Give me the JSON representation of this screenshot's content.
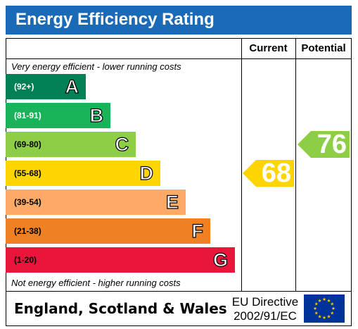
{
  "title": "Energy Efficiency Rating",
  "columns": {
    "current": "Current",
    "potential": "Potential"
  },
  "top_note": "Very energy efficient - lower running costs",
  "bottom_note": "Not energy efficient - higher running costs",
  "footer": {
    "country": "England, Scotland & Wales",
    "directive_line1": "EU Directive",
    "directive_line2": "2002/91/EC"
  },
  "chart_data": {
    "type": "bar",
    "categories": [
      "A",
      "B",
      "C",
      "D",
      "E",
      "F",
      "G"
    ],
    "bands": [
      {
        "letter": "A",
        "range": "(92+)",
        "color": "#008054",
        "text_color": "#ffffff"
      },
      {
        "letter": "B",
        "range": "(81-91)",
        "color": "#19b459",
        "text_color": "#ffffff"
      },
      {
        "letter": "C",
        "range": "(69-80)",
        "color": "#8dce46",
        "text_color": "#000000"
      },
      {
        "letter": "D",
        "range": "(55-68)",
        "color": "#ffd500",
        "text_color": "#000000"
      },
      {
        "letter": "E",
        "range": "(39-54)",
        "color": "#fcaa65",
        "text_color": "#000000"
      },
      {
        "letter": "F",
        "range": "(21-38)",
        "color": "#ef8023",
        "text_color": "#000000"
      },
      {
        "letter": "G",
        "range": "(1-20)",
        "color": "#e9153b",
        "text_color": "#000000"
      }
    ],
    "current": {
      "value": 68,
      "band": "D",
      "color": "#ffd500"
    },
    "potential": {
      "value": 76,
      "band": "C",
      "color": "#8dce46"
    }
  },
  "colors": {
    "title_bg": "#1a6ab8",
    "eu_flag_bg": "#003399",
    "eu_stars": "#ffcc00"
  }
}
